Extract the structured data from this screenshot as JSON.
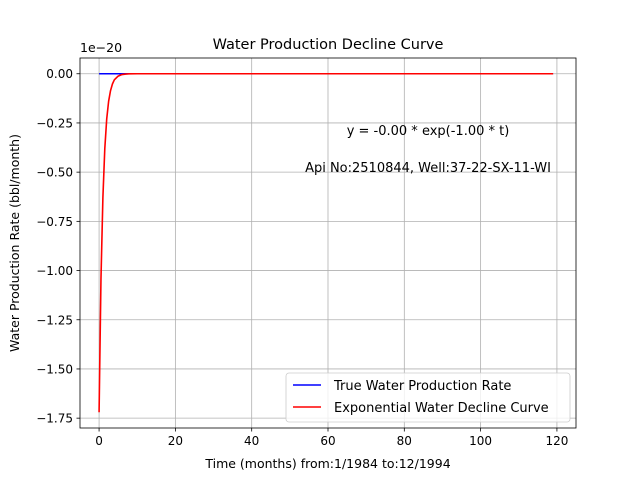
{
  "chart_data": {
    "type": "line",
    "title": "Water Production Decline Curve",
    "xlabel": "Time (months) from:1/1984 to:12/1994",
    "ylabel": "Water Production Rate (bbl/month)",
    "y_offset_label": "1e−20",
    "xlim": [
      -5,
      125
    ],
    "ylim": [
      -1.8,
      0.08
    ],
    "x_ticks": [
      0,
      20,
      40,
      60,
      80,
      100,
      120
    ],
    "x_tick_labels": [
      "0",
      "20",
      "40",
      "60",
      "80",
      "100",
      "120"
    ],
    "y_ticks": [
      0.0,
      -0.25,
      -0.5,
      -0.75,
      -1.0,
      -1.25,
      -1.5,
      -1.75
    ],
    "y_tick_labels": [
      "0.00",
      "−0.25",
      "−0.50",
      "−0.75",
      "−1.00",
      "−1.25",
      "−1.50",
      "−1.75"
    ],
    "grid": true,
    "legend_position": "lower-right",
    "annotations": [
      {
        "text": "y = -0.00 * exp(-1.00 * t)"
      },
      {
        "text": "Api No:2510844, Well:37-22-SX-11-WI"
      }
    ],
    "series": [
      {
        "name": "True Water Production Rate",
        "color": "#0000ff",
        "x": [
          0,
          119
        ],
        "y": [
          0,
          0
        ]
      },
      {
        "name": "Exponential Water Decline Curve",
        "color": "#ff0000",
        "x": [
          0,
          0.5,
          1,
          1.5,
          2,
          2.5,
          3,
          3.5,
          4,
          5,
          6,
          7,
          8,
          10,
          12,
          119
        ],
        "y": [
          -1.72,
          -1.04,
          -0.63,
          -0.38,
          -0.23,
          -0.14,
          -0.086,
          -0.052,
          -0.031,
          -0.012,
          -0.004,
          -0.0016,
          -0.0006,
          -0.0001,
          0,
          0
        ]
      }
    ]
  }
}
